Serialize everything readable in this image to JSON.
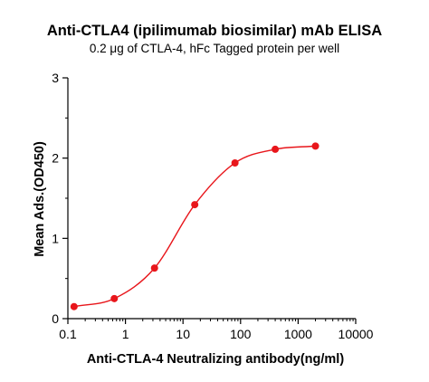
{
  "chart_data": {
    "type": "scatter",
    "title": "Anti-CTLA4 (ipilimumab biosimilar) mAb ELISA",
    "subtitle": "0.2 μg of CTLA-4, hFc Tagged protein per well",
    "xlabel": "Anti-CTLA-4 Neutralizing antibody(ng/ml)",
    "ylabel": "Mean Ads.(OD450)",
    "xscale": "log",
    "xlim": [
      0.1,
      10000
    ],
    "ylim": [
      0,
      3
    ],
    "x_ticks": [
      "0.1",
      "1",
      "10",
      "100",
      "1000",
      "10000"
    ],
    "y_ticks": [
      "0",
      "1",
      "2",
      "3"
    ],
    "grid": false,
    "legend": "none",
    "color": "#e8161b",
    "fit_curve": "sigmoidal",
    "series": [
      {
        "x": [
          0.128,
          0.64,
          3.2,
          16,
          80,
          400,
          2000
        ],
        "y": [
          0.15,
          0.25,
          0.63,
          1.42,
          1.94,
          2.11,
          2.15
        ]
      }
    ]
  }
}
